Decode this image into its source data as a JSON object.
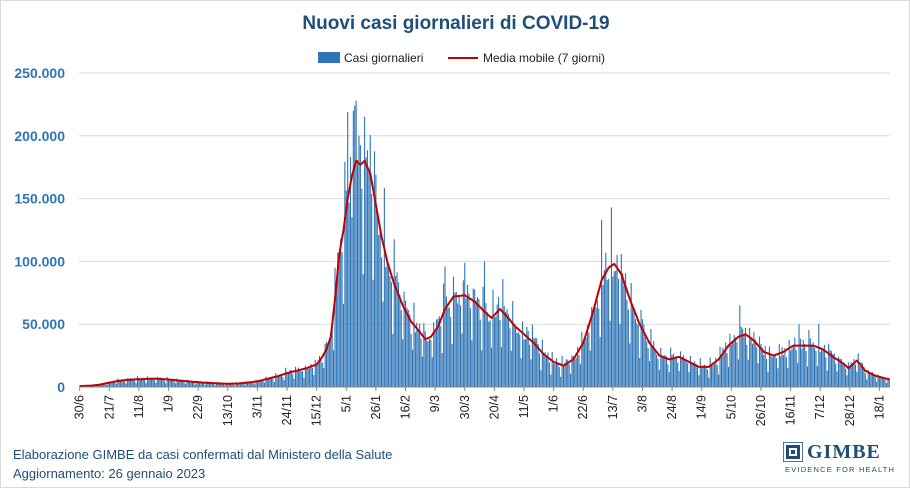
{
  "chart_data": {
    "type": "bar",
    "title": "Nuovi casi giornalieri di COVID-19",
    "legend": {
      "placement": "top-center",
      "entries": [
        {
          "name": "Casi giornalieri",
          "kind": "bar",
          "color": "#2e75b6"
        },
        {
          "name": "Media mobile (7 giorni)",
          "kind": "line",
          "color": "#c00000"
        }
      ]
    },
    "ylim": [
      0,
      250000
    ],
    "yticks": [
      {
        "value": 0,
        "label": "0"
      },
      {
        "value": 50000,
        "label": "50.000"
      },
      {
        "value": 100000,
        "label": "100.000"
      },
      {
        "value": 150000,
        "label": "150.000"
      },
      {
        "value": 200000,
        "label": "200.000"
      },
      {
        "value": 250000,
        "label": "250.000"
      }
    ],
    "grid": true,
    "start_date": "2021-06-30",
    "end_date": "2023-01-25",
    "x_tick_labels": [
      "30/6",
      "21/7",
      "11/8",
      "1/9",
      "22/9",
      "13/10",
      "3/11",
      "24/11",
      "15/12",
      "5/1",
      "26/1",
      "16/2",
      "9/3",
      "30/3",
      "20/4",
      "11/5",
      "1/6",
      "22/6",
      "13/7",
      "3/8",
      "24/8",
      "14/9",
      "5/10",
      "26/10",
      "16/11",
      "7/12",
      "28/12",
      "18/1"
    ],
    "moving_average": [
      {
        "date": "2021-06-30",
        "value": 800
      },
      {
        "date": "2021-07-07",
        "value": 1000
      },
      {
        "date": "2021-07-14",
        "value": 1800
      },
      {
        "date": "2021-07-21",
        "value": 3500
      },
      {
        "date": "2021-07-28",
        "value": 5000
      },
      {
        "date": "2021-08-04",
        "value": 5800
      },
      {
        "date": "2021-08-11",
        "value": 6200
      },
      {
        "date": "2021-08-18",
        "value": 6500
      },
      {
        "date": "2021-08-25",
        "value": 6500
      },
      {
        "date": "2021-09-01",
        "value": 6000
      },
      {
        "date": "2021-09-08",
        "value": 5200
      },
      {
        "date": "2021-09-15",
        "value": 4500
      },
      {
        "date": "2021-09-22",
        "value": 3800
      },
      {
        "date": "2021-09-29",
        "value": 3300
      },
      {
        "date": "2021-10-06",
        "value": 2900
      },
      {
        "date": "2021-10-13",
        "value": 2600
      },
      {
        "date": "2021-10-20",
        "value": 2800
      },
      {
        "date": "2021-10-27",
        "value": 3500
      },
      {
        "date": "2021-11-03",
        "value": 4500
      },
      {
        "date": "2021-11-10",
        "value": 6500
      },
      {
        "date": "2021-11-17",
        "value": 8500
      },
      {
        "date": "2021-11-24",
        "value": 11000
      },
      {
        "date": "2021-12-01",
        "value": 13000
      },
      {
        "date": "2021-12-08",
        "value": 15000
      },
      {
        "date": "2021-12-15",
        "value": 18000
      },
      {
        "date": "2021-12-19",
        "value": 24000
      },
      {
        "date": "2021-12-22",
        "value": 30000
      },
      {
        "date": "2021-12-25",
        "value": 40000
      },
      {
        "date": "2021-12-28",
        "value": 70000
      },
      {
        "date": "2021-12-31",
        "value": 105000
      },
      {
        "date": "2022-01-03",
        "value": 125000
      },
      {
        "date": "2022-01-06",
        "value": 150000
      },
      {
        "date": "2022-01-09",
        "value": 168000
      },
      {
        "date": "2022-01-12",
        "value": 180000
      },
      {
        "date": "2022-01-15",
        "value": 177000
      },
      {
        "date": "2022-01-18",
        "value": 180000
      },
      {
        "date": "2022-01-22",
        "value": 170000
      },
      {
        "date": "2022-01-26",
        "value": 145000
      },
      {
        "date": "2022-01-30",
        "value": 120000
      },
      {
        "date": "2022-02-03",
        "value": 100000
      },
      {
        "date": "2022-02-08",
        "value": 82000
      },
      {
        "date": "2022-02-14",
        "value": 65000
      },
      {
        "date": "2022-02-20",
        "value": 52000
      },
      {
        "date": "2022-02-26",
        "value": 44000
      },
      {
        "date": "2022-03-02",
        "value": 38000
      },
      {
        "date": "2022-03-06",
        "value": 40000
      },
      {
        "date": "2022-03-11",
        "value": 48000
      },
      {
        "date": "2022-03-16",
        "value": 62000
      },
      {
        "date": "2022-03-22",
        "value": 72000
      },
      {
        "date": "2022-03-30",
        "value": 73000
      },
      {
        "date": "2022-04-06",
        "value": 68000
      },
      {
        "date": "2022-04-13",
        "value": 60000
      },
      {
        "date": "2022-04-18",
        "value": 55000
      },
      {
        "date": "2022-04-24",
        "value": 62000
      },
      {
        "date": "2022-04-29",
        "value": 56000
      },
      {
        "date": "2022-05-05",
        "value": 48000
      },
      {
        "date": "2022-05-11",
        "value": 42000
      },
      {
        "date": "2022-05-18",
        "value": 35000
      },
      {
        "date": "2022-05-25",
        "value": 26000
      },
      {
        "date": "2022-06-01",
        "value": 20000
      },
      {
        "date": "2022-06-08",
        "value": 17000
      },
      {
        "date": "2022-06-15",
        "value": 22000
      },
      {
        "date": "2022-06-22",
        "value": 35000
      },
      {
        "date": "2022-06-29",
        "value": 60000
      },
      {
        "date": "2022-07-05",
        "value": 85000
      },
      {
        "date": "2022-07-10",
        "value": 95000
      },
      {
        "date": "2022-07-14",
        "value": 98000
      },
      {
        "date": "2022-07-19",
        "value": 90000
      },
      {
        "date": "2022-07-25",
        "value": 70000
      },
      {
        "date": "2022-08-01",
        "value": 50000
      },
      {
        "date": "2022-08-08",
        "value": 35000
      },
      {
        "date": "2022-08-15",
        "value": 25000
      },
      {
        "date": "2022-08-22",
        "value": 22000
      },
      {
        "date": "2022-08-29",
        "value": 24000
      },
      {
        "date": "2022-09-05",
        "value": 20000
      },
      {
        "date": "2022-09-12",
        "value": 16000
      },
      {
        "date": "2022-09-19",
        "value": 16000
      },
      {
        "date": "2022-09-26",
        "value": 22000
      },
      {
        "date": "2022-10-03",
        "value": 33000
      },
      {
        "date": "2022-10-10",
        "value": 40000
      },
      {
        "date": "2022-10-15",
        "value": 42000
      },
      {
        "date": "2022-10-21",
        "value": 37000
      },
      {
        "date": "2022-10-28",
        "value": 28000
      },
      {
        "date": "2022-11-04",
        "value": 25000
      },
      {
        "date": "2022-11-11",
        "value": 28000
      },
      {
        "date": "2022-11-18",
        "value": 33000
      },
      {
        "date": "2022-11-25",
        "value": 33000
      },
      {
        "date": "2022-12-02",
        "value": 33000
      },
      {
        "date": "2022-12-09",
        "value": 30000
      },
      {
        "date": "2022-12-16",
        "value": 24000
      },
      {
        "date": "2022-12-23",
        "value": 19000
      },
      {
        "date": "2022-12-27",
        "value": 15000
      },
      {
        "date": "2023-01-02",
        "value": 21000
      },
      {
        "date": "2023-01-08",
        "value": 13000
      },
      {
        "date": "2023-01-15",
        "value": 9000
      },
      {
        "date": "2023-01-25",
        "value": 6000
      }
    ],
    "daily_peaks": [
      {
        "date": "2022-01-06",
        "value": 219000
      },
      {
        "date": "2022-01-10",
        "value": 220000
      },
      {
        "date": "2022-01-12",
        "value": 228000
      },
      {
        "date": "2022-01-14",
        "value": 200000
      },
      {
        "date": "2022-01-18",
        "value": 215000
      },
      {
        "date": "2022-03-16",
        "value": 96000
      },
      {
        "date": "2022-03-30",
        "value": 99000
      },
      {
        "date": "2022-04-13",
        "value": 100000
      },
      {
        "date": "2022-07-05",
        "value": 133000
      },
      {
        "date": "2022-07-12",
        "value": 143000
      },
      {
        "date": "2022-10-11",
        "value": 65000
      },
      {
        "date": "2022-11-22",
        "value": 50000
      },
      {
        "date": "2022-12-06",
        "value": 50000
      }
    ]
  },
  "footer": {
    "source": "Elaborazione GIMBE da casi confermati dal Ministero della Salute",
    "updated": "Aggiornamento: 26 gennaio 2023"
  },
  "logo": {
    "name": "GIMBE",
    "tagline": "EVIDENCE FOR HEALTH"
  }
}
